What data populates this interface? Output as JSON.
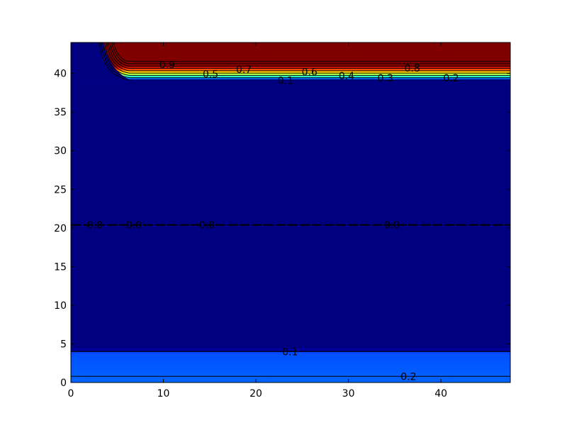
{
  "chart_data": {
    "type": "heatmap",
    "subtype": "filled-contour",
    "colormap": "jet",
    "title": "",
    "xlabel": "",
    "ylabel": "",
    "xlim": [
      0,
      47.5
    ],
    "ylim": [
      0,
      44
    ],
    "x_ticks": [
      0,
      10,
      20,
      30,
      40
    ],
    "y_ticks": [
      0,
      5,
      10,
      15,
      20,
      25,
      30,
      35,
      40
    ],
    "levels": [
      0.0,
      0.1,
      0.2,
      0.3,
      0.4,
      0.5,
      0.6,
      0.7,
      0.8,
      0.9
    ],
    "regions": [
      {
        "name": "top-band",
        "y_from": 39.0,
        "y_to": 44.0,
        "value_range": [
          0.1,
          0.95
        ]
      },
      {
        "name": "middle",
        "y_from": 4.0,
        "y_to": 39.0,
        "value_range": [
          0.0,
          0.05
        ]
      },
      {
        "name": "bottom-band",
        "y_from": 0.0,
        "y_to": 4.0,
        "value_range": [
          0.1,
          0.22
        ]
      }
    ],
    "contour_labels": [
      {
        "text": "0.9",
        "x": 10.4,
        "y": 41.1
      },
      {
        "text": "0.7",
        "x": 18.7,
        "y": 40.5
      },
      {
        "text": "0.5",
        "x": 15.1,
        "y": 39.9
      },
      {
        "text": "0.6",
        "x": 25.8,
        "y": 40.2
      },
      {
        "text": "0.4",
        "x": 29.8,
        "y": 39.7
      },
      {
        "text": "0.8",
        "x": 36.9,
        "y": 40.7
      },
      {
        "text": "0.3",
        "x": 34.0,
        "y": 39.4
      },
      {
        "text": "0.2",
        "x": 41.1,
        "y": 39.4
      },
      {
        "text": "0.1",
        "x": 23.2,
        "y": 39.1
      },
      {
        "text": "0.0",
        "x": 2.6,
        "y": 20.4
      },
      {
        "text": "0.0",
        "x": 6.8,
        "y": 20.4
      },
      {
        "text": "0.0",
        "x": 14.7,
        "y": 20.4
      },
      {
        "text": "0.0",
        "x": 34.7,
        "y": 20.4
      },
      {
        "text": "0.1",
        "x": 23.7,
        "y": 4.0
      },
      {
        "text": "0.2",
        "x": 36.5,
        "y": 0.8
      }
    ]
  }
}
